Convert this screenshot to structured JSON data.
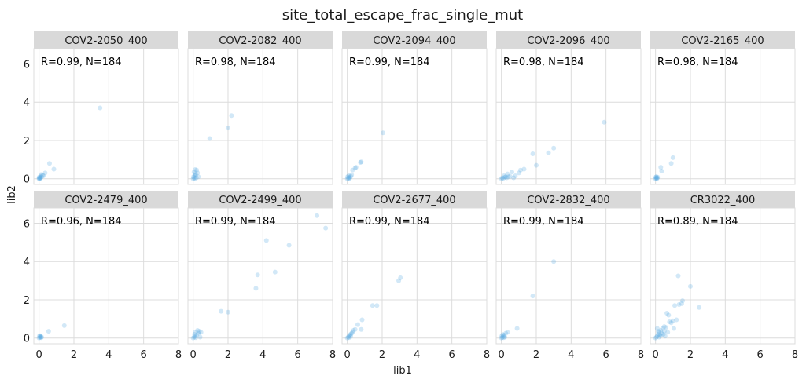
{
  "figure": {
    "title": "site_total_escape_frac_single_mut",
    "xlabel": "lib1",
    "ylabel": "lib2"
  },
  "colors": {
    "point": "#5dade2",
    "strip": "#d9d9d9",
    "grid": "#dcdcdc",
    "text": "#1a1a1a"
  },
  "chart_data": {
    "type": "scatter",
    "title": "site_total_escape_frac_single_mut",
    "xlabel": "lib1",
    "ylabel": "lib2",
    "xlim": [
      -0.3,
      8
    ],
    "ylim": [
      -0.3,
      6.8
    ],
    "xticks": [
      0,
      2,
      4,
      6,
      8
    ],
    "yticks": [
      0,
      2,
      4,
      6
    ],
    "grid": true,
    "legend": "none",
    "panels": [
      {
        "name": "COV2-2050_400",
        "annotation": "R=0.99, N=184",
        "points": [
          [
            0.0,
            0.0
          ],
          [
            0.05,
            0.02
          ],
          [
            0.1,
            0.05
          ],
          [
            0.08,
            0.12
          ],
          [
            0.15,
            0.1
          ],
          [
            0.02,
            0.08
          ],
          [
            0.2,
            0.18
          ],
          [
            0.12,
            0.22
          ],
          [
            0.35,
            0.3
          ],
          [
            0.25,
            0.15
          ],
          [
            0.6,
            0.8
          ],
          [
            0.85,
            0.5
          ],
          [
            3.5,
            3.7
          ],
          [
            0.03,
            0.0
          ],
          [
            0.0,
            0.05
          ],
          [
            0.06,
            0.06
          ]
        ]
      },
      {
        "name": "COV2-2082_400",
        "annotation": "R=0.98, N=184",
        "points": [
          [
            0.0,
            0.0
          ],
          [
            0.05,
            0.05
          ],
          [
            0.1,
            0.02
          ],
          [
            0.08,
            0.15
          ],
          [
            0.15,
            0.2
          ],
          [
            0.2,
            0.45
          ],
          [
            0.05,
            0.35
          ],
          [
            0.25,
            0.3
          ],
          [
            0.3,
            0.1
          ],
          [
            0.12,
            0.48
          ],
          [
            0.95,
            2.1
          ],
          [
            2.0,
            2.65
          ],
          [
            2.2,
            3.3
          ],
          [
            0.02,
            0.1
          ],
          [
            0.18,
            0.05
          ],
          [
            0.1,
            0.25
          ]
        ]
      },
      {
        "name": "COV2-2094_400",
        "annotation": "R=0.99, N=184",
        "points": [
          [
            0.0,
            0.0
          ],
          [
            0.05,
            0.03
          ],
          [
            0.1,
            0.08
          ],
          [
            0.15,
            0.05
          ],
          [
            0.2,
            0.12
          ],
          [
            0.3,
            0.45
          ],
          [
            0.45,
            0.55
          ],
          [
            0.5,
            0.6
          ],
          [
            0.75,
            0.85
          ],
          [
            0.8,
            0.88
          ],
          [
            2.05,
            2.4
          ],
          [
            0.08,
            0.15
          ],
          [
            0.02,
            0.1
          ],
          [
            0.12,
            0.02
          ],
          [
            0.25,
            0.2
          ]
        ]
      },
      {
        "name": "COV2-2096_400",
        "annotation": "R=0.98, N=184",
        "points": [
          [
            0.0,
            0.0
          ],
          [
            0.05,
            0.05
          ],
          [
            0.1,
            0.02
          ],
          [
            0.2,
            0.08
          ],
          [
            0.3,
            0.05
          ],
          [
            0.4,
            0.1
          ],
          [
            0.5,
            0.12
          ],
          [
            0.6,
            0.35
          ],
          [
            0.8,
            0.15
          ],
          [
            1.0,
            0.3
          ],
          [
            1.1,
            0.45
          ],
          [
            1.3,
            0.5
          ],
          [
            1.8,
            1.3
          ],
          [
            2.0,
            0.7
          ],
          [
            2.7,
            1.35
          ],
          [
            3.0,
            1.6
          ],
          [
            5.9,
            2.95
          ],
          [
            0.15,
            0.15
          ],
          [
            0.25,
            0.1
          ],
          [
            0.7,
            0.05
          ],
          [
            0.35,
            0.25
          ]
        ]
      },
      {
        "name": "COV2-2165_400",
        "annotation": "R=0.98, N=184",
        "points": [
          [
            0.0,
            0.0
          ],
          [
            0.03,
            0.03
          ],
          [
            0.06,
            0.06
          ],
          [
            0.02,
            0.09
          ],
          [
            0.08,
            0.01
          ],
          [
            0.1,
            0.04
          ],
          [
            0.3,
            0.6
          ],
          [
            0.35,
            0.4
          ],
          [
            0.9,
            0.8
          ],
          [
            1.0,
            1.1
          ],
          [
            0.05,
            0.1
          ],
          [
            0.12,
            0.08
          ]
        ]
      },
      {
        "name": "COV2-2479_400",
        "annotation": "R=0.96, N=184",
        "points": [
          [
            0.0,
            0.0
          ],
          [
            0.04,
            0.03
          ],
          [
            0.08,
            0.06
          ],
          [
            0.02,
            0.1
          ],
          [
            0.12,
            0.02
          ],
          [
            0.06,
            0.12
          ],
          [
            0.55,
            0.35
          ],
          [
            1.45,
            0.65
          ],
          [
            0.1,
            0.08
          ],
          [
            0.15,
            0.05
          ]
        ]
      },
      {
        "name": "COV2-2499_400",
        "annotation": "R=0.99, N=184",
        "points": [
          [
            0.0,
            0.0
          ],
          [
            0.05,
            0.05
          ],
          [
            0.1,
            0.1
          ],
          [
            0.15,
            0.02
          ],
          [
            0.2,
            0.15
          ],
          [
            0.3,
            0.25
          ],
          [
            0.35,
            0.35
          ],
          [
            0.4,
            0.05
          ],
          [
            0.25,
            0.4
          ],
          [
            0.45,
            0.3
          ],
          [
            1.6,
            1.4
          ],
          [
            2.0,
            1.35
          ],
          [
            3.6,
            2.6
          ],
          [
            3.7,
            3.3
          ],
          [
            4.2,
            5.1
          ],
          [
            4.7,
            3.45
          ],
          [
            5.5,
            4.85
          ],
          [
            7.1,
            6.4
          ],
          [
            7.6,
            5.75
          ],
          [
            0.08,
            0.2
          ],
          [
            0.12,
            0.3
          ]
        ]
      },
      {
        "name": "COV2-2677_400",
        "annotation": "R=0.99, N=184",
        "points": [
          [
            0.0,
            0.0
          ],
          [
            0.05,
            0.05
          ],
          [
            0.1,
            0.1
          ],
          [
            0.15,
            0.15
          ],
          [
            0.2,
            0.2
          ],
          [
            0.25,
            0.25
          ],
          [
            0.3,
            0.3
          ],
          [
            0.35,
            0.4
          ],
          [
            0.45,
            0.45
          ],
          [
            0.6,
            0.7
          ],
          [
            0.8,
            0.45
          ],
          [
            0.85,
            0.95
          ],
          [
            1.45,
            1.7
          ],
          [
            1.7,
            1.7
          ],
          [
            2.95,
            3.0
          ],
          [
            3.05,
            3.15
          ],
          [
            0.1,
            0.02
          ],
          [
            0.2,
            0.08
          ]
        ]
      },
      {
        "name": "COV2-2832_400",
        "annotation": "R=0.99, N=184",
        "points": [
          [
            0.0,
            0.0
          ],
          [
            0.05,
            0.03
          ],
          [
            0.1,
            0.08
          ],
          [
            0.02,
            0.1
          ],
          [
            0.15,
            0.15
          ],
          [
            0.2,
            0.05
          ],
          [
            0.25,
            0.25
          ],
          [
            0.35,
            0.3
          ],
          [
            0.9,
            0.5
          ],
          [
            1.8,
            2.2
          ],
          [
            3.0,
            4.0
          ],
          [
            0.08,
            0.18
          ],
          [
            0.12,
            0.02
          ]
        ]
      },
      {
        "name": "CR3022_400",
        "annotation": "R=0.89, N=184",
        "points": [
          [
            0.0,
            0.0
          ],
          [
            0.05,
            0.05
          ],
          [
            0.1,
            0.1
          ],
          [
            0.15,
            0.2
          ],
          [
            0.2,
            0.3
          ],
          [
            0.25,
            0.15
          ],
          [
            0.3,
            0.4
          ],
          [
            0.35,
            0.25
          ],
          [
            0.4,
            0.5
          ],
          [
            0.45,
            0.2
          ],
          [
            0.5,
            0.35
          ],
          [
            0.55,
            0.1
          ],
          [
            0.6,
            0.55
          ],
          [
            0.65,
            1.3
          ],
          [
            0.7,
            0.3
          ],
          [
            0.75,
            1.2
          ],
          [
            0.8,
            0.85
          ],
          [
            0.9,
            0.8
          ],
          [
            1.0,
            0.9
          ],
          [
            1.05,
            0.5
          ],
          [
            1.1,
            1.7
          ],
          [
            1.2,
            0.95
          ],
          [
            1.3,
            3.25
          ],
          [
            1.35,
            1.75
          ],
          [
            1.5,
            1.8
          ],
          [
            1.55,
            1.95
          ],
          [
            2.0,
            2.7
          ],
          [
            2.5,
            1.6
          ],
          [
            0.1,
            0.5
          ],
          [
            0.2,
            0.05
          ],
          [
            0.3,
            0.12
          ],
          [
            0.15,
            0.35
          ],
          [
            0.5,
            0.6
          ]
        ]
      }
    ]
  }
}
